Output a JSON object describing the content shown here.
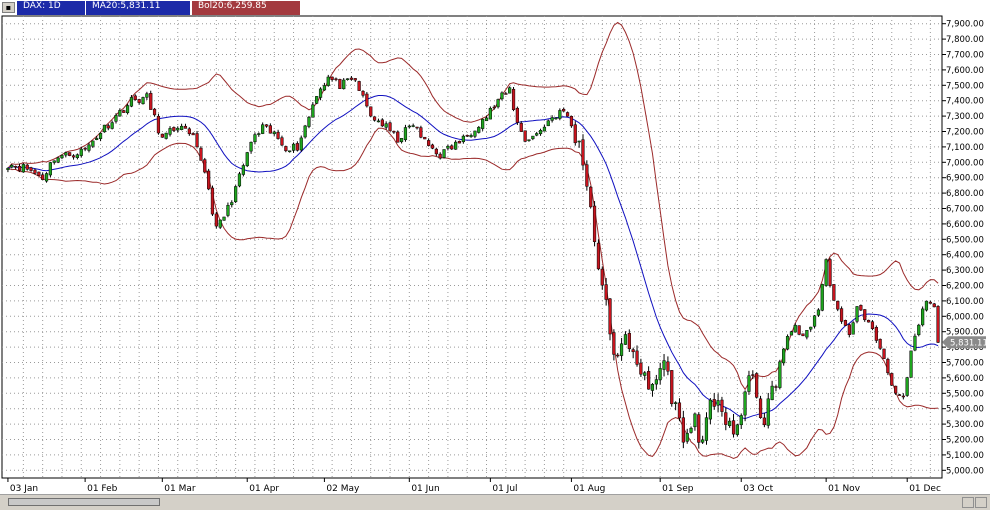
{
  "header": {
    "menu_icon": "menu-icon",
    "symbol_label": "DAX: 1D",
    "ma_label": "MA20:5,831.11",
    "bol_label": "Bol20:6,259.85"
  },
  "colors": {
    "up": "#1ea51e",
    "down": "#c8141e",
    "ma": "#1010c0",
    "bands": "#9b2a2a",
    "grid": "#9a9a9a",
    "price_tag": "#8a8a8a",
    "header_blue": "#1c2aa8",
    "header_red": "#a33a3f"
  },
  "chart_data": {
    "type": "candlestick",
    "title": "",
    "xlabel": "",
    "ylabel": "",
    "ylim": [
      4950,
      7950
    ],
    "y_ticks": [
      5000,
      5100,
      5200,
      5300,
      5400,
      5500,
      5600,
      5700,
      5800,
      5900,
      6000,
      6100,
      6200,
      6300,
      6400,
      6500,
      6600,
      6700,
      6800,
      6900,
      7000,
      7100,
      7200,
      7300,
      7400,
      7500,
      7600,
      7700,
      7800,
      7900
    ],
    "y_tick_labels": [
      "5,000.00",
      "5,100.00",
      "5,200.00",
      "5,300.00",
      "5,400.00",
      "5,500.00",
      "5,600.00",
      "5,700.00",
      "5,800.00",
      "5,900.00",
      "6,000.00",
      "6,100.00",
      "6,200.00",
      "6,300.00",
      "6,400.00",
      "6,500.00",
      "6,600.00",
      "6,700.00",
      "6,800.00",
      "6,900.00",
      "7,000.00",
      "7,100.00",
      "7,200.00",
      "7,300.00",
      "7,400.00",
      "7,500.00",
      "7,600.00",
      "7,700.00",
      "7,800.00",
      "7,900.00"
    ],
    "last_price_label": "5,831.11",
    "last_price": 5831.11,
    "x_labels": [
      "03 Jan",
      "01 Feb",
      "01 Mar",
      "01 Apr",
      "02 May",
      "01 Jun",
      "01 Jul",
      "01 Aug",
      "01 Sep",
      "03 Oct",
      "01 Nov",
      "01 Dec"
    ],
    "x_label_index": [
      0,
      20,
      40,
      62,
      82,
      104,
      125,
      146,
      169,
      190,
      212,
      233
    ],
    "bar_count": 242,
    "close_keys": [
      [
        0,
        6990
      ],
      [
        5,
        6960
      ],
      [
        9,
        6900
      ],
      [
        12,
        7030
      ],
      [
        16,
        7050
      ],
      [
        20,
        7080
      ],
      [
        24,
        7200
      ],
      [
        28,
        7300
      ],
      [
        32,
        7400
      ],
      [
        36,
        7420
      ],
      [
        40,
        7150
      ],
      [
        44,
        7240
      ],
      [
        48,
        7150
      ],
      [
        51,
        6950
      ],
      [
        54,
        6560
      ],
      [
        57,
        6700
      ],
      [
        60,
        6900
      ],
      [
        63,
        7130
      ],
      [
        66,
        7220
      ],
      [
        69,
        7180
      ],
      [
        72,
        7100
      ],
      [
        75,
        7100
      ],
      [
        78,
        7300
      ],
      [
        80,
        7450
      ],
      [
        83,
        7550
      ],
      [
        86,
        7500
      ],
      [
        90,
        7530
      ],
      [
        94,
        7300
      ],
      [
        97,
        7250
      ],
      [
        101,
        7150
      ],
      [
        105,
        7250
      ],
      [
        108,
        7130
      ],
      [
        112,
        7050
      ],
      [
        115,
        7100
      ],
      [
        118,
        7150
      ],
      [
        121,
        7230
      ],
      [
        124,
        7300
      ],
      [
        127,
        7400
      ],
      [
        130,
        7470
      ],
      [
        132,
        7250
      ],
      [
        134,
        7150
      ],
      [
        137,
        7180
      ],
      [
        140,
        7270
      ],
      [
        143,
        7330
      ],
      [
        145,
        7300
      ],
      [
        148,
        7100
      ],
      [
        150,
        6900
      ],
      [
        152,
        6500
      ],
      [
        154,
        6200
      ],
      [
        156,
        5900
      ],
      [
        158,
        5700
      ],
      [
        160,
        5850
      ],
      [
        162,
        5800
      ],
      [
        164,
        5650
      ],
      [
        166,
        5500
      ],
      [
        168,
        5600
      ],
      [
        170,
        5720
      ],
      [
        172,
        5500
      ],
      [
        174,
        5300
      ],
      [
        176,
        5200
      ],
      [
        178,
        5350
      ],
      [
        180,
        5150
      ],
      [
        182,
        5400
      ],
      [
        184,
        5500
      ],
      [
        186,
        5300
      ],
      [
        188,
        5200
      ],
      [
        190,
        5400
      ],
      [
        192,
        5600
      ],
      [
        194,
        5500
      ],
      [
        196,
        5300
      ],
      [
        198,
        5500
      ],
      [
        200,
        5700
      ],
      [
        202,
        5850
      ],
      [
        204,
        5950
      ],
      [
        206,
        5850
      ],
      [
        208,
        5950
      ],
      [
        210,
        6050
      ],
      [
        212,
        6350
      ],
      [
        214,
        6100
      ],
      [
        216,
        5950
      ],
      [
        218,
        5900
      ],
      [
        220,
        6050
      ],
      [
        222,
        6000
      ],
      [
        224,
        5900
      ],
      [
        226,
        5800
      ],
      [
        228,
        5650
      ],
      [
        230,
        5500
      ],
      [
        232,
        5450
      ],
      [
        234,
        5750
      ],
      [
        236,
        5950
      ],
      [
        238,
        6100
      ],
      [
        240,
        6050
      ],
      [
        241,
        5831
      ]
    ],
    "ma_period": 20,
    "band_width_std": 2,
    "series": [
      {
        "type": "candles"
      },
      {
        "type": "moving-average"
      },
      {
        "type": "bollinger-bands"
      }
    ],
    "grid": true,
    "legend": "none"
  }
}
